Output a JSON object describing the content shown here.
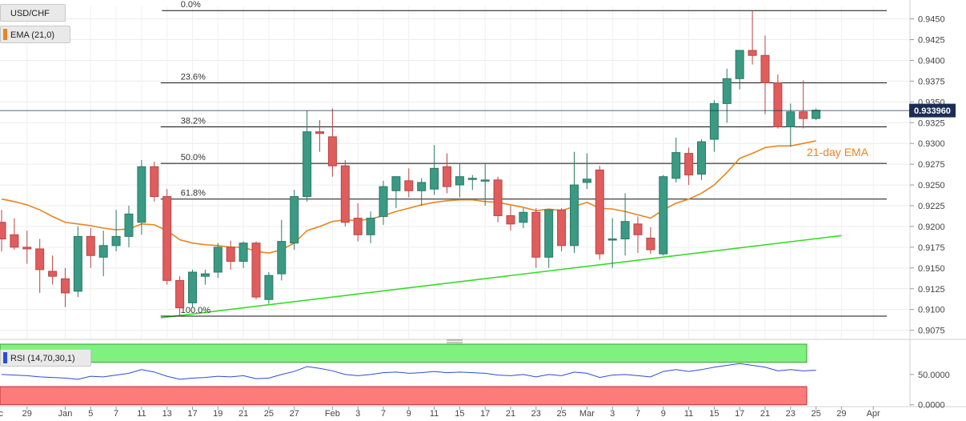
{
  "chart_data": {
    "type": "candlestick",
    "symbol": "USD/CHF",
    "ema_label": "EMA (21,0)",
    "ema_annotation": "21-day EMA",
    "rsi_label": "RSI (14,70,30,1)",
    "last_price": "0.933960",
    "last_value": 0.93396,
    "y_ticks": [
      0.9075,
      0.91,
      0.9125,
      0.915,
      0.9175,
      0.92,
      0.9225,
      0.925,
      0.9275,
      0.93,
      0.9325,
      0.935,
      0.9375,
      0.94,
      0.9425,
      0.945
    ],
    "ylim": [
      0.9065,
      0.9465
    ],
    "rsi_ticks": [
      {
        "value": 0,
        "label": "0.0000"
      },
      {
        "value": 50,
        "label": "50.0000"
      }
    ],
    "rsi_ylim": [
      -3,
      100
    ],
    "rsi_overbought": 70,
    "rsi_oversold": 30,
    "x_ticks": [
      {
        "label": "Dec",
        "i": -0.5
      },
      {
        "label": "29",
        "i": 2
      },
      {
        "label": "Jan",
        "i": 5
      },
      {
        "label": "5",
        "i": 7
      },
      {
        "label": "7",
        "i": 9
      },
      {
        "label": "11",
        "i": 11
      },
      {
        "label": "13",
        "i": 13
      },
      {
        "label": "17",
        "i": 15
      },
      {
        "label": "19",
        "i": 17
      },
      {
        "label": "21",
        "i": 19
      },
      {
        "label": "25",
        "i": 21
      },
      {
        "label": "27",
        "i": 23
      },
      {
        "label": "Feb",
        "i": 26
      },
      {
        "label": "3",
        "i": 28
      },
      {
        "label": "7",
        "i": 30
      },
      {
        "label": "9",
        "i": 32
      },
      {
        "label": "11",
        "i": 34
      },
      {
        "label": "15",
        "i": 36
      },
      {
        "label": "17",
        "i": 38
      },
      {
        "label": "21",
        "i": 40
      },
      {
        "label": "23",
        "i": 42
      },
      {
        "label": "25",
        "i": 44
      },
      {
        "label": "Mar",
        "i": 46
      },
      {
        "label": "3",
        "i": 48
      },
      {
        "label": "7",
        "i": 50
      },
      {
        "label": "9",
        "i": 52
      },
      {
        "label": "11",
        "i": 54
      },
      {
        "label": "15",
        "i": 56
      },
      {
        "label": "17",
        "i": 58
      },
      {
        "label": "21",
        "i": 60
      },
      {
        "label": "23",
        "i": 62
      },
      {
        "label": "25",
        "i": 64
      },
      {
        "label": "29",
        "i": 66
      },
      {
        "label": "Apr",
        "i": 68.5
      }
    ],
    "fib_levels": [
      {
        "label": "0.0%",
        "value": 0.946
      },
      {
        "label": "23.6%",
        "value": 0.9373
      },
      {
        "label": "38.2%",
        "value": 0.932
      },
      {
        "label": "50.0%",
        "value": 0.9276
      },
      {
        "label": "61.8%",
        "value": 0.9233
      },
      {
        "label": "100.0%",
        "value": 0.9092
      }
    ],
    "support_line": {
      "from": {
        "i": 12.5,
        "y": 0.909
      },
      "to": {
        "i": 66,
        "y": 0.9189
      }
    },
    "ohlc": [
      [
        0.9205,
        0.922,
        0.917,
        0.9185
      ],
      [
        0.919,
        0.921,
        0.9172,
        0.9175
      ],
      [
        0.9175,
        0.9195,
        0.9155,
        0.9173
      ],
      [
        0.9173,
        0.9185,
        0.912,
        0.9148
      ],
      [
        0.9146,
        0.9165,
        0.913,
        0.914
      ],
      [
        0.9137,
        0.915,
        0.9103,
        0.912
      ],
      [
        0.9122,
        0.92,
        0.9115,
        0.9188
      ],
      [
        0.9188,
        0.9198,
        0.915,
        0.9165
      ],
      [
        0.9163,
        0.9195,
        0.914,
        0.9177
      ],
      [
        0.9177,
        0.922,
        0.917,
        0.9188
      ],
      [
        0.9188,
        0.9225,
        0.9175,
        0.9215
      ],
      [
        0.9205,
        0.928,
        0.919,
        0.9272
      ],
      [
        0.9272,
        0.9278,
        0.923,
        0.9236
      ],
      [
        0.9236,
        0.9245,
        0.913,
        0.9135
      ],
      [
        0.9135,
        0.914,
        0.9092,
        0.9102
      ],
      [
        0.9108,
        0.9148,
        0.9103,
        0.9145
      ],
      [
        0.914,
        0.9148,
        0.913,
        0.9143
      ],
      [
        0.9145,
        0.918,
        0.9138,
        0.9175
      ],
      [
        0.9175,
        0.9183,
        0.9148,
        0.9158
      ],
      [
        0.9158,
        0.9182,
        0.915,
        0.918
      ],
      [
        0.918,
        0.9182,
        0.9112,
        0.9115
      ],
      [
        0.9112,
        0.9145,
        0.9107,
        0.9141
      ],
      [
        0.9143,
        0.9208,
        0.9135,
        0.9182
      ],
      [
        0.918,
        0.9244,
        0.9172,
        0.9236
      ],
      [
        0.9236,
        0.934,
        0.923,
        0.9314
      ],
      [
        0.9314,
        0.9328,
        0.929,
        0.9312
      ],
      [
        0.9308,
        0.9342,
        0.926,
        0.9273
      ],
      [
        0.9273,
        0.928,
        0.92,
        0.9205
      ],
      [
        0.921,
        0.9228,
        0.9182,
        0.919
      ],
      [
        0.919,
        0.9218,
        0.918,
        0.921
      ],
      [
        0.9212,
        0.9255,
        0.9202,
        0.9248
      ],
      [
        0.9243,
        0.926,
        0.9222,
        0.926
      ],
      [
        0.9255,
        0.927,
        0.9235,
        0.9243
      ],
      [
        0.9243,
        0.9258,
        0.9225,
        0.9253
      ],
      [
        0.9245,
        0.9298,
        0.9238,
        0.927
      ],
      [
        0.9272,
        0.9288,
        0.924,
        0.9248
      ],
      [
        0.925,
        0.9275,
        0.9235,
        0.926
      ],
      [
        0.9258,
        0.9262,
        0.9244,
        0.9258
      ],
      [
        0.9255,
        0.9275,
        0.9225,
        0.9256
      ],
      [
        0.9256,
        0.926,
        0.9205,
        0.9213
      ],
      [
        0.9213,
        0.9225,
        0.9195,
        0.9203
      ],
      [
        0.9205,
        0.9222,
        0.9198,
        0.9217
      ],
      [
        0.9217,
        0.9222,
        0.915,
        0.9163
      ],
      [
        0.9163,
        0.922,
        0.915,
        0.922
      ],
      [
        0.922,
        0.9222,
        0.917,
        0.9177
      ],
      [
        0.9177,
        0.929,
        0.9168,
        0.925
      ],
      [
        0.9253,
        0.9288,
        0.9245,
        0.9257
      ],
      [
        0.9268,
        0.9273,
        0.916,
        0.9167
      ],
      [
        0.9185,
        0.921,
        0.915,
        0.9185
      ],
      [
        0.9185,
        0.924,
        0.9165,
        0.9206
      ],
      [
        0.9203,
        0.9212,
        0.9168,
        0.919
      ],
      [
        0.9186,
        0.9199,
        0.9167,
        0.9172
      ],
      [
        0.9167,
        0.9262,
        0.9165,
        0.926
      ],
      [
        0.9258,
        0.9307,
        0.9253,
        0.9289
      ],
      [
        0.9288,
        0.9295,
        0.925,
        0.9262
      ],
      [
        0.9263,
        0.9305,
        0.9256,
        0.9302
      ],
      [
        0.9305,
        0.9352,
        0.929,
        0.9348
      ],
      [
        0.9348,
        0.939,
        0.9325,
        0.9378
      ],
      [
        0.9378,
        0.9412,
        0.9365,
        0.9412
      ],
      [
        0.9412,
        0.946,
        0.9395,
        0.9406
      ],
      [
        0.9406,
        0.943,
        0.9335,
        0.9373
      ],
      [
        0.9373,
        0.9383,
        0.9318,
        0.932
      ],
      [
        0.932,
        0.9348,
        0.9296,
        0.9338
      ],
      [
        0.9338,
        0.9376,
        0.9318,
        0.933
      ],
      [
        0.933,
        0.9342,
        0.9328,
        0.934
      ]
    ],
    "ema": [
      0.9233,
      0.923,
      0.9226,
      0.922,
      0.9212,
      0.9205,
      0.9203,
      0.9201,
      0.9198,
      0.9196,
      0.9197,
      0.9203,
      0.9202,
      0.9195,
      0.9184,
      0.918,
      0.9178,
      0.9177,
      0.9175,
      0.9175,
      0.917,
      0.9168,
      0.9172,
      0.918,
      0.9195,
      0.92,
      0.9206,
      0.9208,
      0.9207,
      0.9209,
      0.9213,
      0.9218,
      0.9222,
      0.9226,
      0.9229,
      0.9231,
      0.9232,
      0.9232,
      0.923,
      0.9229,
      0.9226,
      0.9223,
      0.9219,
      0.9221,
      0.9219,
      0.9224,
      0.9229,
      0.9222,
      0.9221,
      0.9218,
      0.9214,
      0.921,
      0.922,
      0.9228,
      0.9233,
      0.924,
      0.925,
      0.9265,
      0.9282,
      0.9288,
      0.9295,
      0.9297,
      0.9297,
      0.93,
      0.9303
    ],
    "rsi": [
      50,
      49,
      48,
      46,
      45,
      44,
      42,
      47,
      46,
      49,
      52,
      58,
      54,
      47,
      42,
      44,
      45,
      47,
      46,
      48,
      43,
      44,
      50,
      55,
      63,
      60,
      56,
      50,
      48,
      50,
      53,
      54,
      52,
      53,
      55,
      53,
      54,
      53,
      52,
      49,
      48,
      50,
      46,
      50,
      48,
      54,
      52,
      45,
      49,
      50,
      48,
      46,
      55,
      58,
      55,
      58,
      62,
      65,
      68,
      65,
      62,
      56,
      58,
      56,
      57
    ]
  }
}
